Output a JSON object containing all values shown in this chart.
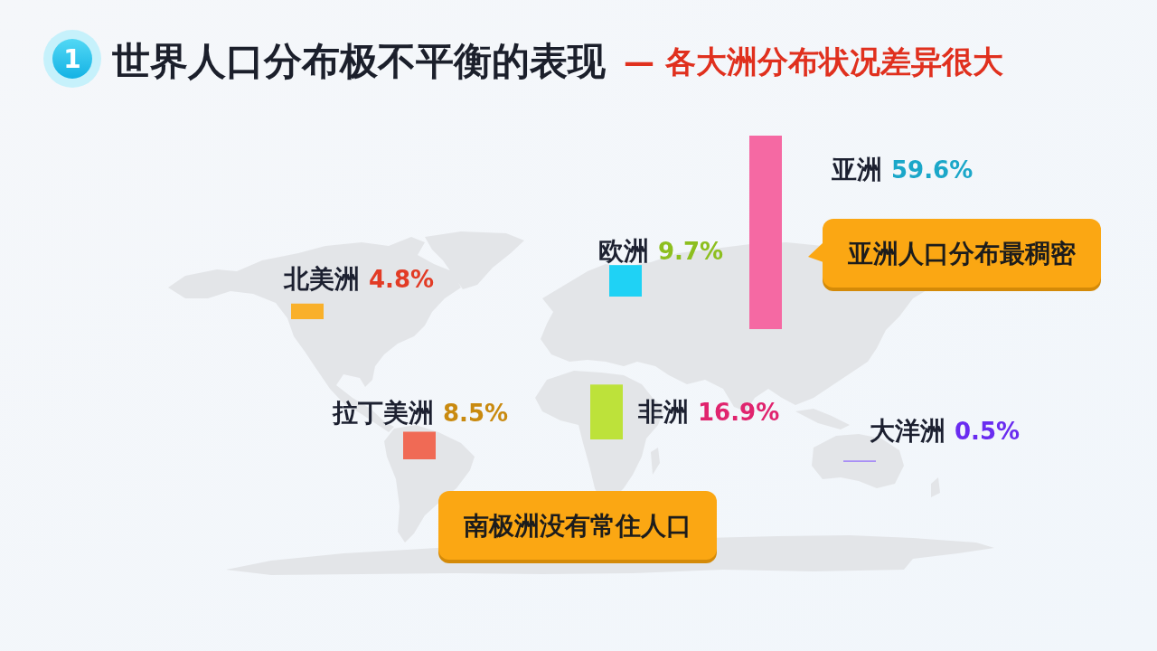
{
  "chart_data": {
    "type": "other",
    "title": "世界人口分布极不平衡的表现",
    "subtitle": "— 各大洲分布状况差异很大",
    "categories": [
      "北美洲",
      "拉丁美洲",
      "欧洲",
      "非洲",
      "亚洲",
      "大洋洲"
    ],
    "values": [
      4.8,
      8.5,
      9.7,
      16.9,
      59.6,
      0.5
    ],
    "value_labels": [
      "4.8%",
      "8.5%",
      "9.7%",
      "16.9%",
      "59.6%",
      "0.5%"
    ],
    "colors": [
      "#f9b02a",
      "#f06a55",
      "#1fd2f5",
      "#bde23a",
      "#f569a3",
      "#a88ff5"
    ],
    "annotations": [
      "1",
      "亚洲人口分布最稠密",
      "南极洲没有常住人口"
    ]
  }
}
